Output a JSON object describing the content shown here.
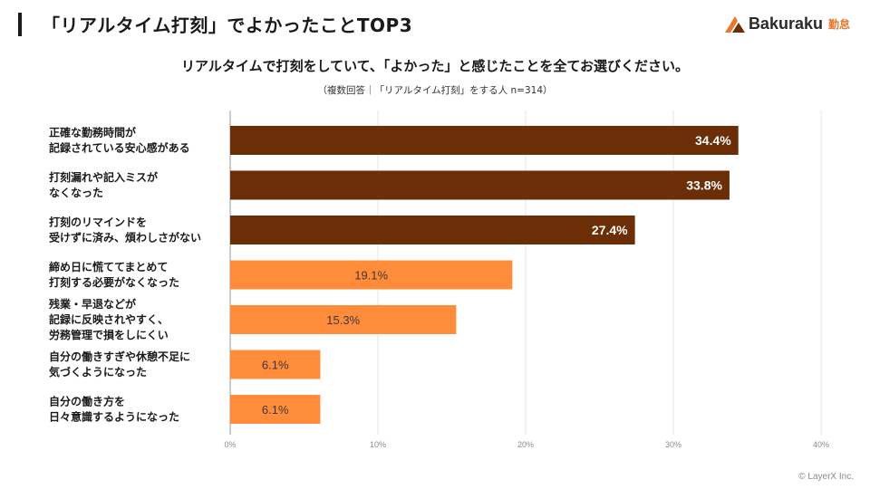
{
  "header": {
    "title": "「リアルタイム打刻」でよかったことTOP3",
    "logo_text": "Bakuraku",
    "logo_sub": "勤怠"
  },
  "question": "リアルタイムで打刻をしていて、「よかった」と感じたことを全てお選びください。",
  "note": "（複数回答｜「リアルタイム打刻」をする人 n=314）",
  "copyright": "© LayerX Inc.",
  "colors": {
    "top3": "#6b2e07",
    "others": "#ff8c3a",
    "grid": "#e6e6e6",
    "axis": "#9a9a9a"
  },
  "chart_data": {
    "type": "bar",
    "orientation": "horizontal",
    "categories": [
      [
        "正確な勤務時間が",
        "記録されている安心感がある"
      ],
      [
        "打刻漏れや記入ミスが",
        "なくなった"
      ],
      [
        "打刻のリマインドを",
        "受けずに済み、煩わしさがない"
      ],
      [
        "締め日に慌ててまとめて",
        "打刻する必要がなくなった"
      ],
      [
        "残業・早退などが",
        "記録に反映されやすく、",
        "労務管理で損をしにくい"
      ],
      [
        "自分の働きすぎや休憩不足に",
        "気づくようになった"
      ],
      [
        "自分の働き方を",
        "日々意識するようになった"
      ]
    ],
    "values": [
      34.4,
      33.8,
      27.4,
      19.1,
      15.3,
      6.1,
      6.1
    ],
    "value_labels": [
      "34.4%",
      "33.8%",
      "27.4%",
      "19.1%",
      "15.3%",
      "6.1%",
      "6.1%"
    ],
    "highlight_top": 3,
    "xlim": [
      0,
      40
    ],
    "xticks": [
      "0%",
      "10%",
      "20%",
      "30%",
      "40%"
    ],
    "grid": true
  }
}
